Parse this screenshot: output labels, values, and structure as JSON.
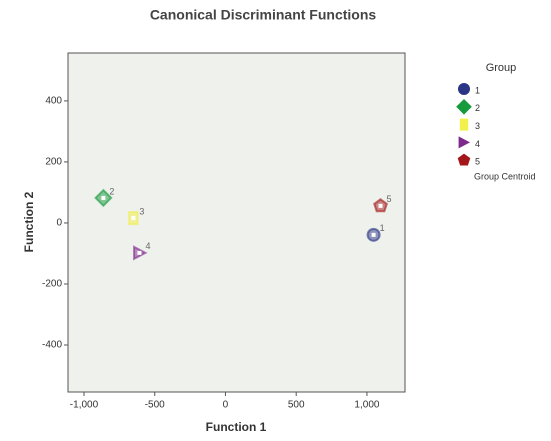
{
  "chart_data": {
    "type": "scatter",
    "title": "Canonical Discriminant Functions",
    "x_label": "Function 1",
    "y_label": "Function 2",
    "xlim": [
      -1113,
      1269
    ],
    "ylim": [
      -554,
      557
    ],
    "xticks": [
      {
        "value": -1000,
        "label": "-1,000"
      },
      -500,
      0,
      500,
      {
        "value": 1000,
        "label": "1,000"
      }
    ],
    "yticks": [
      -400,
      -200,
      0,
      200,
      400
    ],
    "legend_title": "Group",
    "centroid_label": "Group Centroid",
    "series": [
      {
        "name": "1",
        "color": "#2b3585",
        "marker": "circle",
        "x": [
          1047
        ],
        "y": [
          -39
        ]
      },
      {
        "name": "2",
        "color": "#159a3c",
        "marker": "diamond",
        "x": [
          -863
        ],
        "y": [
          82
        ]
      },
      {
        "name": "3",
        "color": "#f2f04a",
        "marker": "square",
        "x": [
          -651
        ],
        "y": [
          16
        ]
      },
      {
        "name": "4",
        "color": "#7d2a8c",
        "marker": "triangle",
        "x": [
          -608
        ],
        "y": [
          -98
        ]
      },
      {
        "name": "5",
        "color": "#a3171b",
        "marker": "pentagon",
        "x": [
          1096
        ],
        "y": [
          56
        ]
      }
    ]
  }
}
